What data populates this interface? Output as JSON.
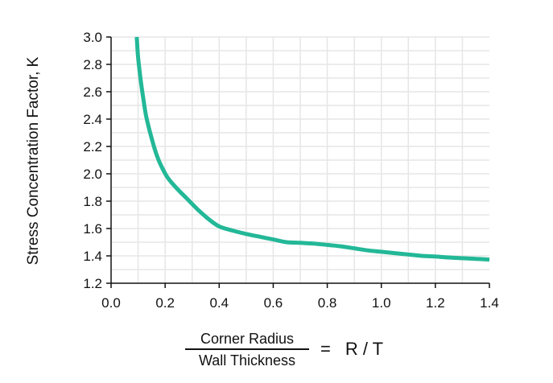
{
  "chart_data": {
    "type": "line",
    "ylabel": "Stress Concentration Factor, K",
    "xlabel": {
      "numerator": "Corner Radius",
      "denominator": "Wall Thickness",
      "equals": "=",
      "symbol": "R / T"
    },
    "xlim": [
      0.0,
      1.4
    ],
    "ylim": [
      1.2,
      3.0
    ],
    "x_ticks": [
      "0.0",
      "0.2",
      "0.4",
      "0.6",
      "0.8",
      "1.0",
      "1.2",
      "1.4"
    ],
    "y_ticks": [
      "1.2",
      "1.4",
      "1.6",
      "1.8",
      "2.0",
      "2.2",
      "2.4",
      "2.6",
      "2.8",
      "3.0"
    ],
    "grid": true,
    "series": [
      {
        "color": "#23b897",
        "x": [
          0.095,
          0.1,
          0.11,
          0.12,
          0.13,
          0.15,
          0.17,
          0.19,
          0.21,
          0.24,
          0.28,
          0.32,
          0.36,
          0.4,
          0.45,
          0.5,
          0.55,
          0.6,
          0.65,
          0.7,
          0.75,
          0.8,
          0.85,
          0.9,
          0.95,
          1.0,
          1.05,
          1.1,
          1.15,
          1.2,
          1.25,
          1.3,
          1.35,
          1.4
        ],
        "y": [
          3.0,
          2.85,
          2.68,
          2.54,
          2.42,
          2.26,
          2.13,
          2.04,
          1.97,
          1.9,
          1.82,
          1.74,
          1.67,
          1.615,
          1.585,
          1.56,
          1.54,
          1.52,
          1.5,
          1.495,
          1.49,
          1.48,
          1.47,
          1.455,
          1.44,
          1.43,
          1.42,
          1.41,
          1.4,
          1.395,
          1.388,
          1.383,
          1.378,
          1.373
        ]
      }
    ]
  }
}
